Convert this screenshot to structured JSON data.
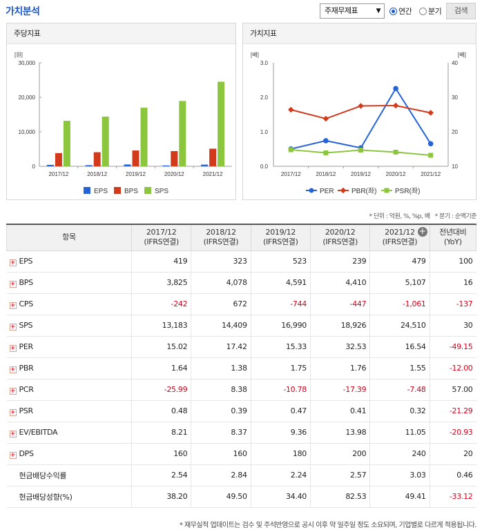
{
  "header": {
    "title": "가치분석",
    "select_value": "주재무제표",
    "radio_annual": "연간",
    "radio_quarter": "분기",
    "search_label": "검색"
  },
  "left_panel": {
    "title": "주당지표"
  },
  "right_panel": {
    "title": "가치지표"
  },
  "chart_data": [
    {
      "type": "bar",
      "title": "주당지표",
      "ylabel": "[원]",
      "categories": [
        "2017/12",
        "2018/12",
        "2019/12",
        "2020/12",
        "2021/12"
      ],
      "y_ticks": [
        "30,000",
        "20,000",
        "10,000",
        "0"
      ],
      "ylim": [
        0,
        30000
      ],
      "series": [
        {
          "name": "EPS",
          "color": "#2563d6",
          "values": [
            419,
            323,
            523,
            239,
            479
          ]
        },
        {
          "name": "BPS",
          "color": "#d23a1c",
          "values": [
            3825,
            4078,
            4591,
            4410,
            5107
          ]
        },
        {
          "name": "SPS",
          "color": "#8cc63f",
          "values": [
            13183,
            14409,
            16990,
            18926,
            24510
          ]
        }
      ]
    },
    {
      "type": "line",
      "title": "가치지표",
      "ylabel_left": "[배]",
      "ylabel_right": "[배]",
      "categories": [
        "2017/12",
        "2018/12",
        "2019/12",
        "2020/12",
        "2021/12"
      ],
      "y_ticks_left": [
        "3.0",
        "2.0",
        "1.0",
        "0.0"
      ],
      "y_ticks_right": [
        "40",
        "30",
        "20",
        "10"
      ],
      "ylim_left": [
        0,
        3
      ],
      "ylim_right": [
        10,
        40
      ],
      "series": [
        {
          "name": "PER",
          "axis": "right",
          "color": "#2563d6",
          "values": [
            15.02,
            17.42,
            15.33,
            32.53,
            16.54
          ]
        },
        {
          "name": "PBR(좌)",
          "axis": "left",
          "color": "#d23a1c",
          "values": [
            1.64,
            1.38,
            1.75,
            1.76,
            1.55
          ]
        },
        {
          "name": "PSR(좌)",
          "axis": "left",
          "color": "#8cc63f",
          "values": [
            0.48,
            0.39,
            0.47,
            0.41,
            0.32
          ]
        }
      ]
    }
  ],
  "notes": {
    "unit": "* 단위 : 억원, %, %p, 배",
    "quarter": "* 분기 : 순액기준"
  },
  "table": {
    "head_item": "항목",
    "years": [
      {
        "y": "2017/12",
        "t": "(IFRS연결)"
      },
      {
        "y": "2018/12",
        "t": "(IFRS연결)"
      },
      {
        "y": "2019/12",
        "t": "(IFRS연결)"
      },
      {
        "y": "2020/12",
        "t": "(IFRS연결)"
      },
      {
        "y": "2021/12",
        "t": "(IFRS연결)"
      }
    ],
    "yoy_1": "전년대비",
    "yoy_2": "(YoY)",
    "rows": [
      {
        "name": "EPS",
        "expand": true,
        "v": [
          "419",
          "323",
          "523",
          "239",
          "479",
          "100"
        ]
      },
      {
        "name": "BPS",
        "expand": true,
        "v": [
          "3,825",
          "4,078",
          "4,591",
          "4,410",
          "5,107",
          "16"
        ]
      },
      {
        "name": "CPS",
        "expand": true,
        "v": [
          "-242",
          "672",
          "-744",
          "-447",
          "-1,061",
          "-137"
        ]
      },
      {
        "name": "SPS",
        "expand": true,
        "v": [
          "13,183",
          "14,409",
          "16,990",
          "18,926",
          "24,510",
          "30"
        ]
      },
      {
        "name": "PER",
        "expand": true,
        "v": [
          "15.02",
          "17.42",
          "15.33",
          "32.53",
          "16.54",
          "-49.15"
        ]
      },
      {
        "name": "PBR",
        "expand": true,
        "v": [
          "1.64",
          "1.38",
          "1.75",
          "1.76",
          "1.55",
          "-12.00"
        ]
      },
      {
        "name": "PCR",
        "expand": true,
        "v": [
          "-25.99",
          "8.38",
          "-10.78",
          "-17.39",
          "-7.48",
          "57.00"
        ]
      },
      {
        "name": "PSR",
        "expand": true,
        "v": [
          "0.48",
          "0.39",
          "0.47",
          "0.41",
          "0.32",
          "-21.29"
        ]
      },
      {
        "name": "EV/EBITDA",
        "expand": true,
        "v": [
          "8.21",
          "8.37",
          "9.36",
          "13.98",
          "11.05",
          "-20.93"
        ]
      },
      {
        "name": "DPS",
        "expand": true,
        "v": [
          "160",
          "160",
          "180",
          "200",
          "240",
          "20"
        ]
      },
      {
        "name": "현금배당수익률",
        "expand": false,
        "v": [
          "2.54",
          "2.84",
          "2.24",
          "2.57",
          "3.03",
          "0.46"
        ]
      },
      {
        "name": "현금배당성향(%)",
        "expand": false,
        "v": [
          "38.20",
          "49.50",
          "34.40",
          "82.53",
          "49.41",
          "-33.12"
        ]
      }
    ]
  },
  "footnote": "* 재무실적 업데이트는 검수 및 주석반영으로 공시 이후 약 일주일 정도 소요되며, 기업별로 다르게 적용됩니다."
}
